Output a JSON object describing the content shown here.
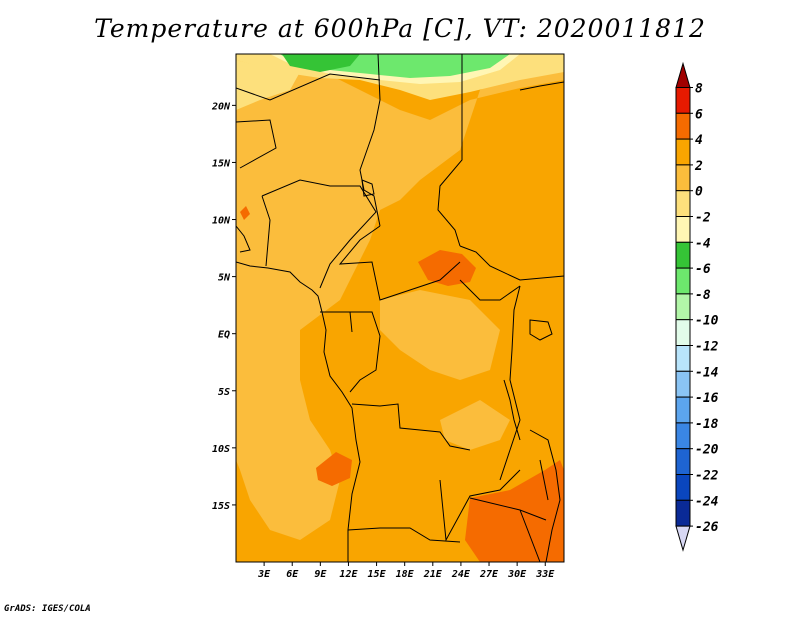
{
  "title": "Temperature at 600hPa [C], VT: 2020011812",
  "credit": "GrADS: IGES/COLA",
  "map": {
    "lon_range": [
      0,
      35
    ],
    "lat_range": [
      -20,
      24.5
    ],
    "lat_ticks": [
      {
        "value": 20,
        "label": "20N"
      },
      {
        "value": 15,
        "label": "15N"
      },
      {
        "value": 10,
        "label": "10N"
      },
      {
        "value": 5,
        "label": "5N"
      },
      {
        "value": 0,
        "label": "EQ"
      },
      {
        "value": -5,
        "label": "5S"
      },
      {
        "value": -10,
        "label": "10S"
      },
      {
        "value": -15,
        "label": "15S"
      }
    ],
    "lon_ticks": [
      {
        "value": 3,
        "label": "3E"
      },
      {
        "value": 6,
        "label": "6E"
      },
      {
        "value": 9,
        "label": "9E"
      },
      {
        "value": 12,
        "label": "12E"
      },
      {
        "value": 15,
        "label": "15E"
      },
      {
        "value": 18,
        "label": "18E"
      },
      {
        "value": 21,
        "label": "21E"
      },
      {
        "value": 24,
        "label": "24E"
      },
      {
        "value": 27,
        "label": "27E"
      },
      {
        "value": 30,
        "label": "30E"
      },
      {
        "value": 33,
        "label": "33E"
      }
    ]
  },
  "colorbar": {
    "levels": [
      "8",
      "6",
      "4",
      "2",
      "0",
      "-2",
      "-4",
      "-6",
      "-8",
      "-10",
      "-12",
      "-14",
      "-16",
      "-18",
      "-20",
      "-22",
      "-24",
      "-26"
    ],
    "colors": [
      "#a00000",
      "#e61a00",
      "#f56b00",
      "#f9a500",
      "#fbbd3c",
      "#fde07c",
      "#fff6b4",
      "#35c436",
      "#6de86d",
      "#b2f6a8",
      "#e2fcea",
      "#b8e4fb",
      "#8ac4f4",
      "#5ca5ee",
      "#3a86e4",
      "#1e64d2",
      "#0a46be",
      "#0a2a96",
      "#0c0a5e",
      "#d8d8f4"
    ]
  }
}
